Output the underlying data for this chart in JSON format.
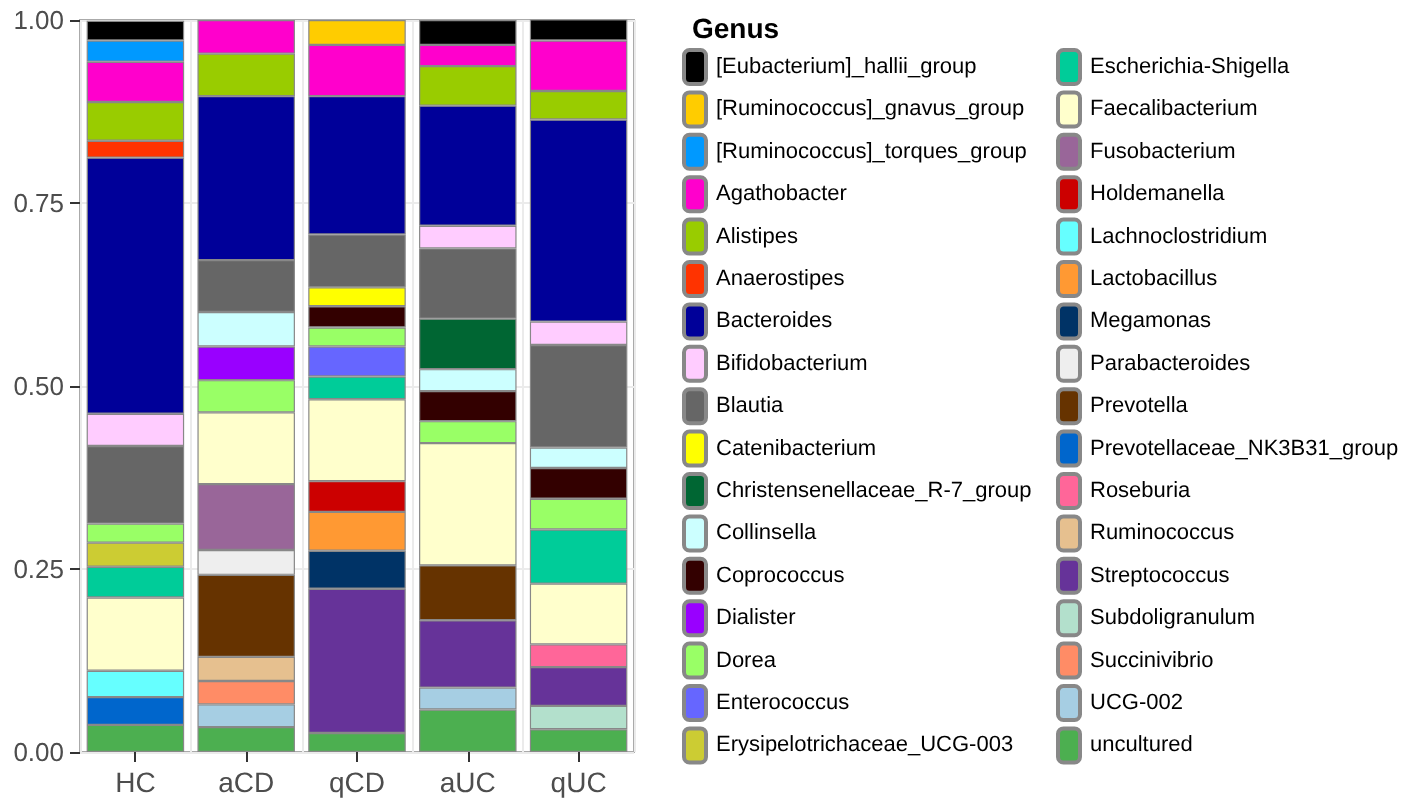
{
  "chart_data": {
    "type": "bar",
    "stacked": true,
    "legend_title": "Genus",
    "legend": "right",
    "grid": true,
    "categories": [
      "HC",
      "aCD",
      "qCD",
      "aUC",
      "qUC"
    ],
    "ylim": [
      0,
      1
    ],
    "yticks": [
      {
        "value": 0,
        "label": "0.00"
      },
      {
        "value": 0.25,
        "label": "0.25"
      },
      {
        "value": 0.5,
        "label": "0.50"
      },
      {
        "value": 0.75,
        "label": "0.75"
      },
      {
        "value": 1,
        "label": "1.00"
      }
    ],
    "series": [
      {
        "name": "uncultured",
        "color": "#4caf50",
        "values": [
          0.037,
          0.034,
          0.026,
          0.058,
          0.031
        ]
      },
      {
        "name": "UCG-002",
        "color": "#a6cee3",
        "values": [
          null,
          0.031,
          null,
          0.03,
          null
        ]
      },
      {
        "name": "Succinivibrio",
        "color": "#ff8c66",
        "values": [
          null,
          0.032,
          null,
          null,
          null
        ]
      },
      {
        "name": "Subdoligranulum",
        "color": "#b3e0cc",
        "values": [
          null,
          null,
          null,
          null,
          0.032
        ]
      },
      {
        "name": "Streptococcus",
        "color": "#663399",
        "values": [
          null,
          null,
          0.197,
          0.092,
          0.053
        ]
      },
      {
        "name": "Ruminococcus",
        "color": "#e6c08f",
        "values": [
          null,
          0.033,
          null,
          null,
          null
        ]
      },
      {
        "name": "Roseburia",
        "color": "#ff6699",
        "values": [
          null,
          null,
          null,
          null,
          0.031
        ]
      },
      {
        "name": "Prevotellaceae_NK3B31_group",
        "color": "#0066cc",
        "values": [
          0.038,
          null,
          null,
          null,
          null
        ]
      },
      {
        "name": "Prevotella",
        "color": "#663300",
        "values": [
          null,
          0.112,
          null,
          0.075,
          null
        ]
      },
      {
        "name": "Parabacteroides",
        "color": "#eeeeee",
        "values": [
          null,
          0.034,
          null,
          null,
          null
        ]
      },
      {
        "name": "Megamonas",
        "color": "#003366",
        "values": [
          null,
          null,
          0.052,
          null,
          null
        ]
      },
      {
        "name": "Lactobacillus",
        "color": "#ff9933",
        "values": [
          null,
          null,
          0.053,
          null,
          null
        ]
      },
      {
        "name": "Lachnoclostridium",
        "color": "#66ffff",
        "values": [
          0.036,
          null,
          null,
          null,
          null
        ]
      },
      {
        "name": "Holdemanella",
        "color": "#cc0000",
        "values": [
          null,
          null,
          0.042,
          null,
          null
        ]
      },
      {
        "name": "Fusobacterium",
        "color": "#996699",
        "values": [
          null,
          0.09,
          null,
          null,
          null
        ]
      },
      {
        "name": "Faecalibacterium",
        "color": "#ffffcc",
        "values": [
          0.1,
          0.098,
          0.112,
          0.167,
          0.083
        ]
      },
      {
        "name": "Escherichia-Shigella",
        "color": "#00cc99",
        "values": [
          0.042,
          null,
          0.031,
          null,
          0.074
        ]
      },
      {
        "name": "Erysipelotrichaceae_UCG-003",
        "color": "#cccc33",
        "values": [
          0.033,
          null,
          null,
          null,
          null
        ]
      },
      {
        "name": "Enterococcus",
        "color": "#6666ff",
        "values": [
          null,
          null,
          0.041,
          null,
          null
        ]
      },
      {
        "name": "Dorea",
        "color": "#99ff66",
        "values": [
          0.026,
          0.044,
          0.026,
          0.03,
          0.042
        ]
      },
      {
        "name": "Dialister",
        "color": "#9900ff",
        "values": [
          null,
          0.046,
          null,
          null,
          null
        ]
      },
      {
        "name": "Coprococcus",
        "color": "#330000",
        "values": [
          null,
          null,
          0.029,
          0.041,
          0.042
        ]
      },
      {
        "name": "Collinsella",
        "color": "#ccffff",
        "values": [
          null,
          0.047,
          null,
          0.03,
          0.028
        ]
      },
      {
        "name": "Christensenellaceae_R-7_group",
        "color": "#006633",
        "values": [
          null,
          null,
          null,
          0.069,
          null
        ]
      },
      {
        "name": "Catenibacterium",
        "color": "#ffff00",
        "values": [
          null,
          null,
          0.026,
          null,
          null
        ]
      },
      {
        "name": "Blautia",
        "color": "#666666",
        "values": [
          0.106,
          0.071,
          0.072,
          0.096,
          0.14
        ]
      },
      {
        "name": "Bifidobacterium",
        "color": "#ffccff",
        "values": [
          0.044,
          null,
          null,
          0.031,
          0.032
        ]
      },
      {
        "name": "Bacteroides",
        "color": "#000099",
        "values": [
          0.35,
          0.224,
          0.189,
          0.164,
          0.276
        ]
      },
      {
        "name": "Anaerostipes",
        "color": "#ff3300",
        "values": [
          0.023,
          null,
          null,
          null,
          null
        ]
      },
      {
        "name": "Alistipes",
        "color": "#99cc00",
        "values": [
          0.053,
          0.058,
          null,
          0.054,
          0.039
        ]
      },
      {
        "name": "Agathobacter",
        "color": "#ff00cc",
        "values": [
          0.055,
          0.046,
          0.07,
          0.029,
          0.069
        ]
      },
      {
        "name": "[Ruminococcus]_torques_group",
        "color": "#0099ff",
        "values": [
          0.029,
          null,
          null,
          null,
          null
        ]
      },
      {
        "name": "[Ruminococcus]_gnavus_group",
        "color": "#ffcc00",
        "values": [
          null,
          null,
          0.034,
          null,
          null
        ]
      },
      {
        "name": "[Eubacterium]_hallii_group",
        "color": "#000000",
        "values": [
          0.027,
          null,
          null,
          0.034,
          0.029
        ]
      }
    ]
  }
}
